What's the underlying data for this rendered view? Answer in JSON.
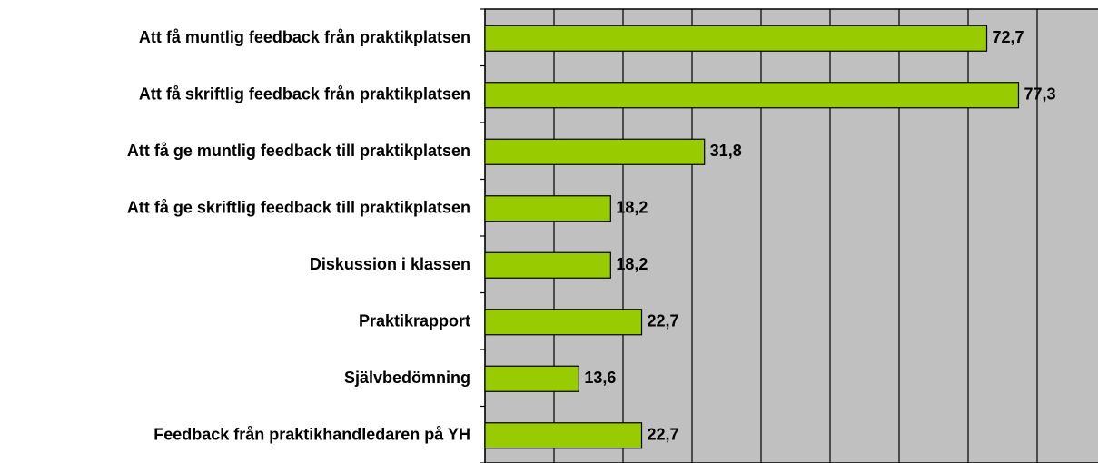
{
  "chart_data": {
    "type": "bar",
    "orientation": "horizontal",
    "categories": [
      "Att få muntlig feedback från praktikplatsen",
      "Att få skriftlig feedback från praktikplatsen",
      "Att få ge muntlig feedback till praktikplatsen",
      "Att få ge skriftlig feedback till praktikplatsen",
      "Diskussion i klassen",
      "Praktikrapport",
      "Självbedömning",
      "Feedback från praktikhandledaren på YH"
    ],
    "values": [
      72.7,
      77.3,
      31.8,
      18.2,
      18.2,
      22.7,
      13.6,
      22.7
    ],
    "value_labels": [
      "72,7",
      "77,3",
      "31,8",
      "18,2",
      "18,2",
      "22,7",
      "13,6",
      "22,7"
    ],
    "color": "#99cc00",
    "xlabel": "%",
    "xlim": [
      0,
      90
    ],
    "xticks": [
      0,
      10,
      20,
      30,
      40,
      50,
      60,
      70,
      80,
      90
    ],
    "xtick_labels": false,
    "grid": true
  }
}
